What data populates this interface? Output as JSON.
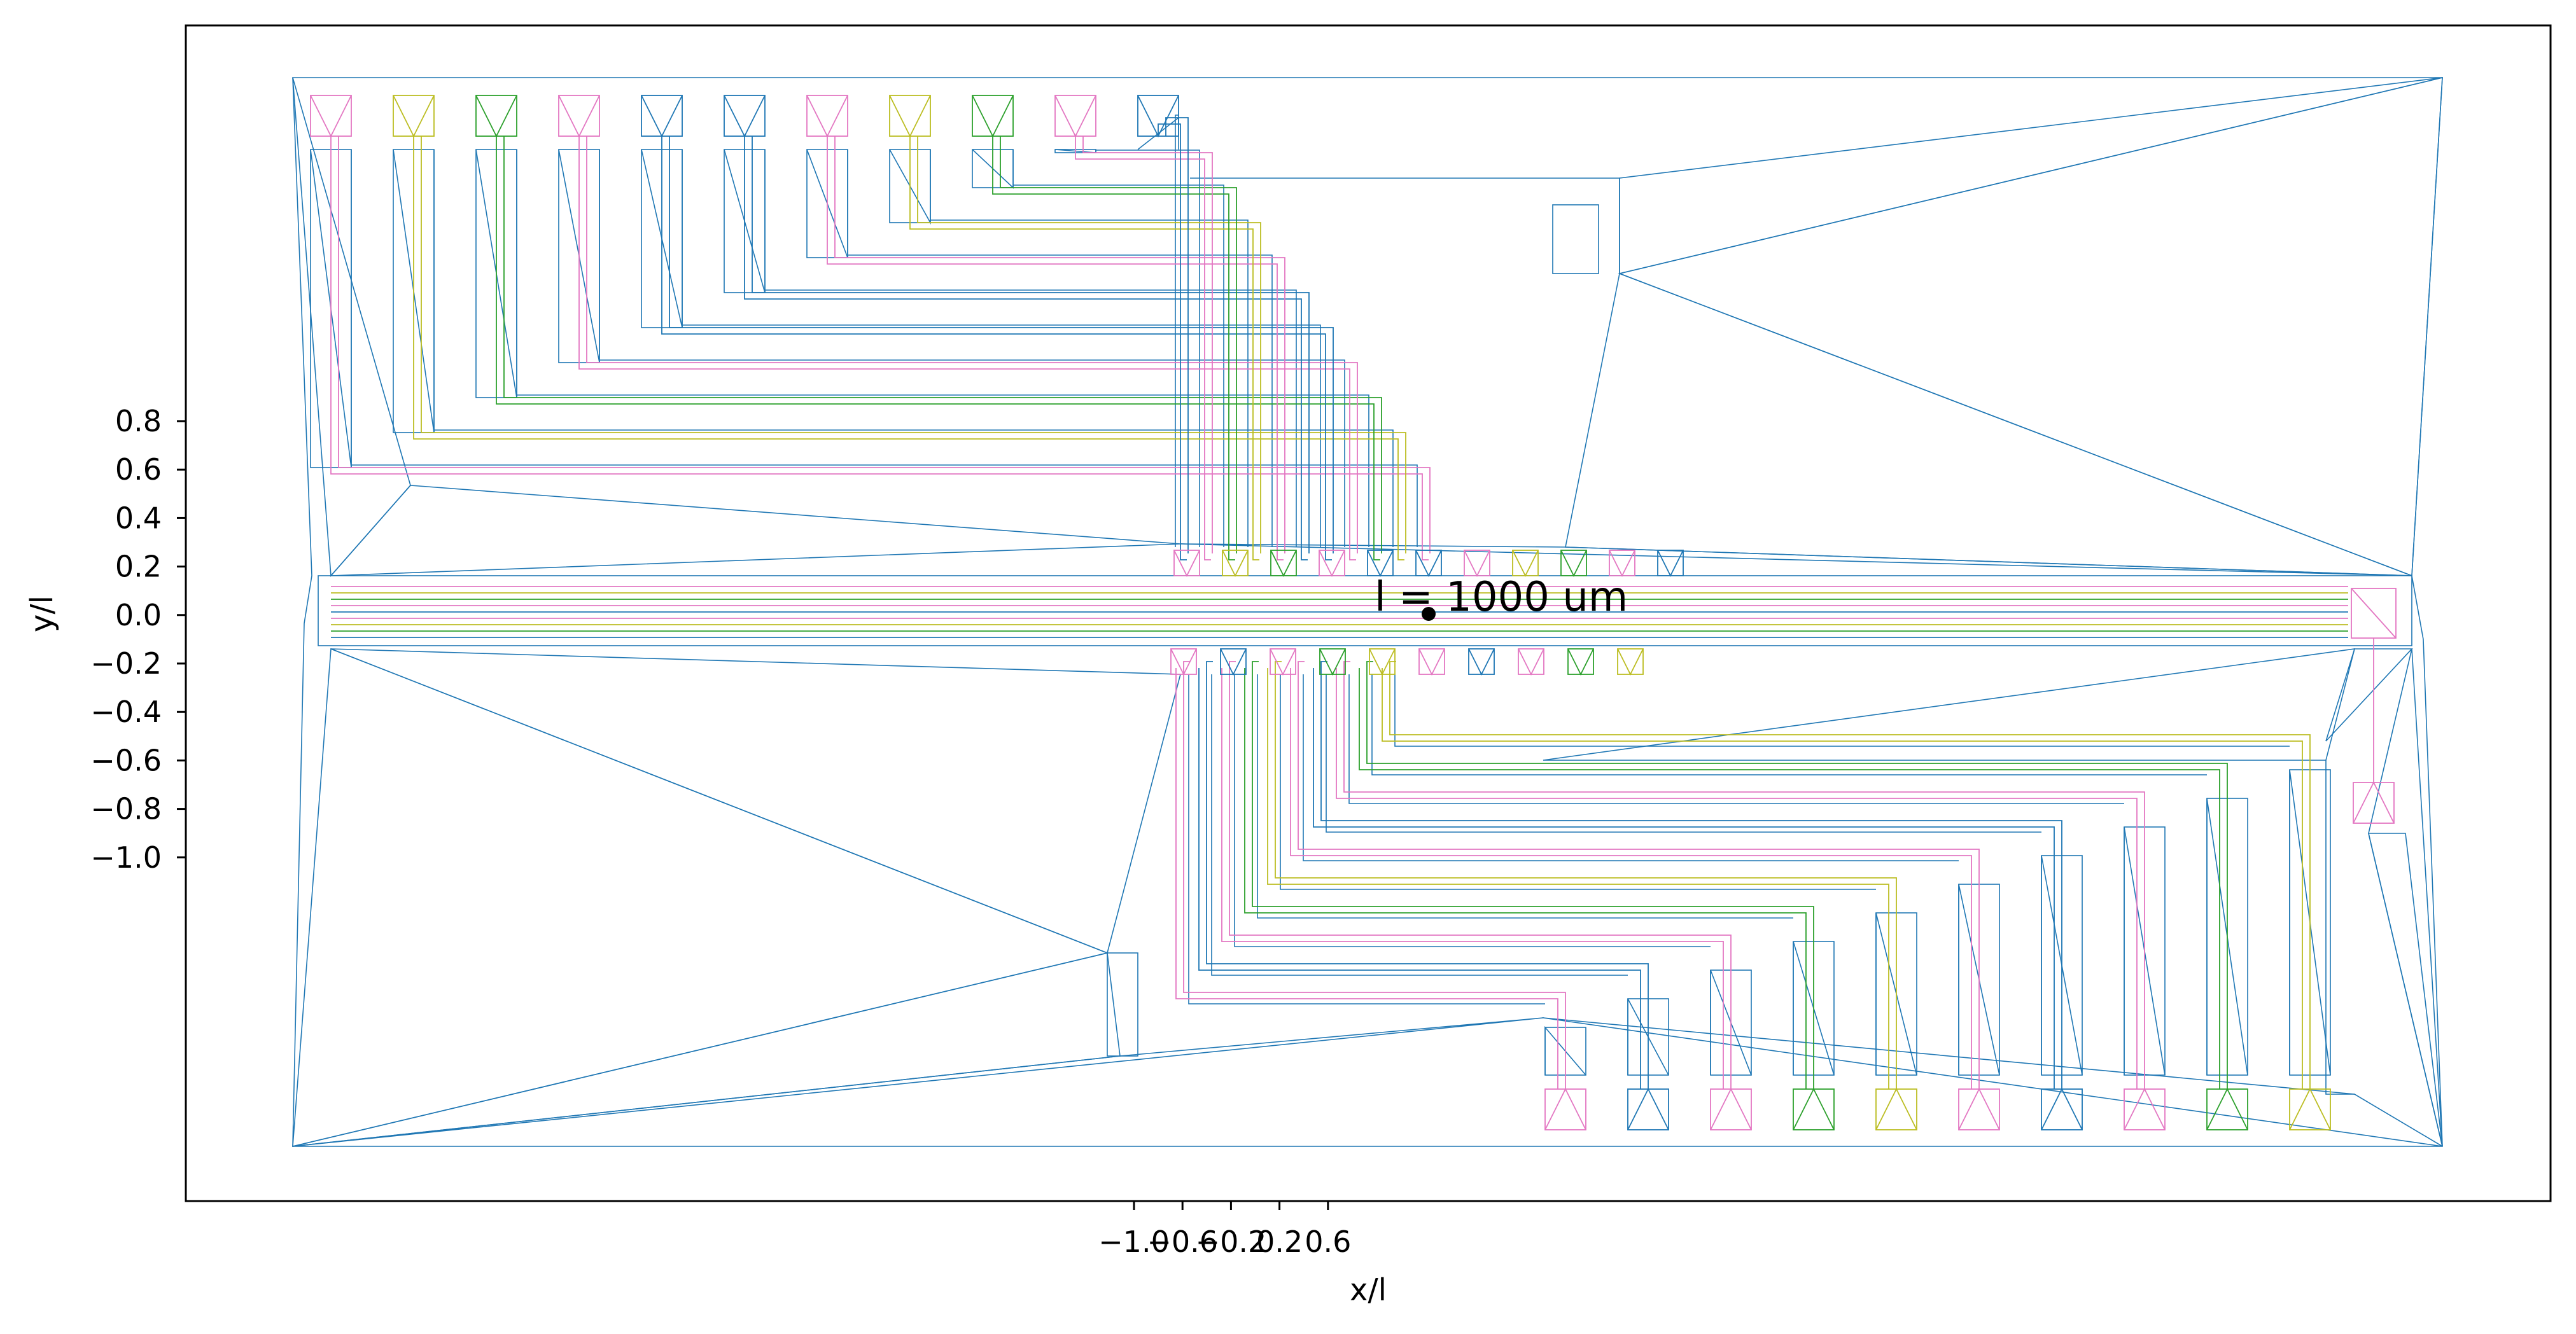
{
  "figure": {
    "annotation": "l = 1000 um",
    "xlabel": "x/l",
    "ylabel": "y/l",
    "xticks": [
      "−1.0",
      "−0.6",
      "−0.2",
      "0.2",
      "0.6"
    ],
    "yticks": [
      "0.8",
      "0.6",
      "0.4",
      "0.2",
      "0.0",
      "−0.2",
      "−0.4",
      "−0.6",
      "−0.8",
      "−1.0"
    ]
  },
  "colors": {
    "mesh": "#1f77b4",
    "palette": [
      "#e377c2",
      "#bcbd22",
      "#2ca02c",
      "#e377c2",
      "#1f77b4",
      "#1f77b4",
      "#e377c2",
      "#bcbd22",
      "#2ca02c",
      "#e377c2",
      "#1f77b4"
    ],
    "palette_bottom": [
      "#e377c2",
      "#1f77b4",
      "#e377c2",
      "#2ca02c",
      "#bcbd22",
      "#e377c2",
      "#1f77b4",
      "#e377c2",
      "#2ca02c",
      "#bcbd22"
    ]
  }
}
